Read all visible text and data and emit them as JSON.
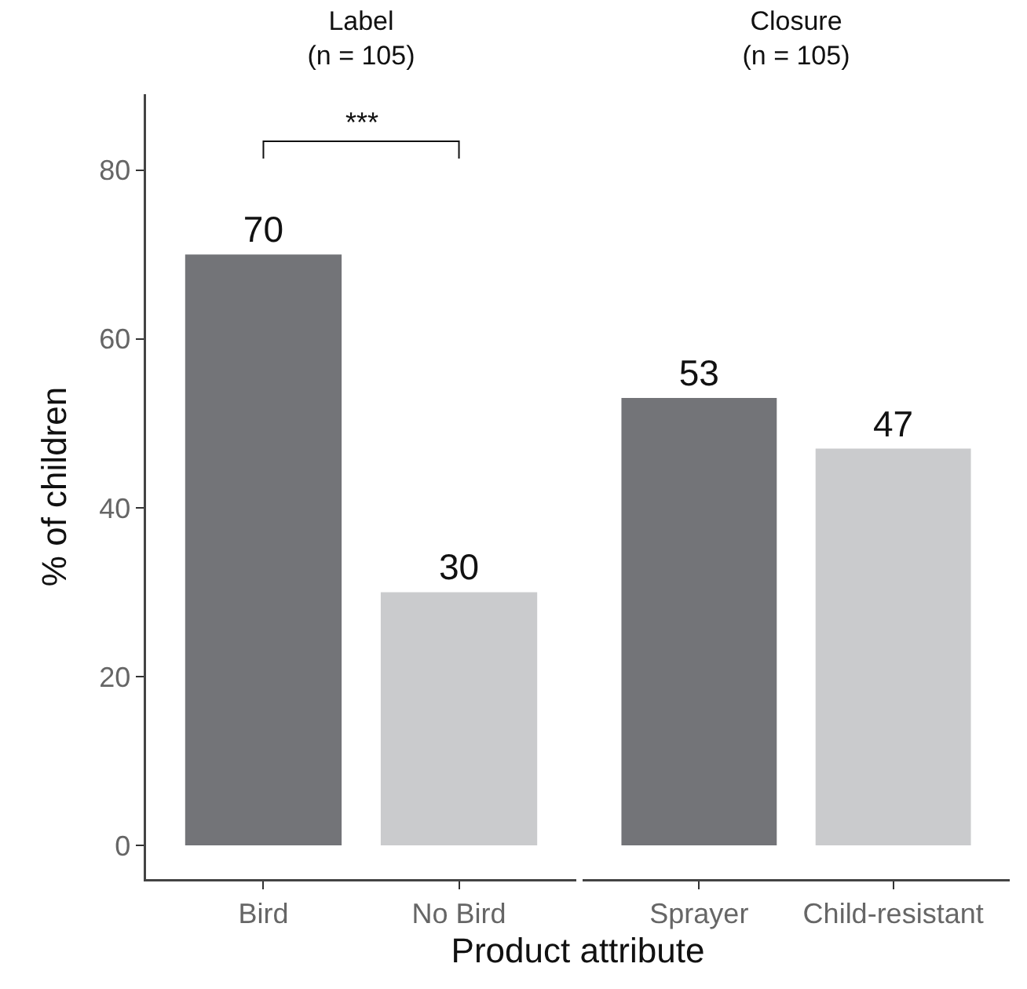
{
  "chart_data": [
    {
      "type": "bar",
      "title": "Label\n(n = 105)",
      "xlabel": "Product attribute",
      "ylabel": "% of children",
      "categories": [
        "Bird",
        "No Bird"
      ],
      "values": [
        70,
        30
      ],
      "colors": [
        "#737478",
        "#cacbcd"
      ],
      "ylim": [
        -4,
        89
      ],
      "yticks": [
        0,
        20,
        40,
        60,
        80
      ],
      "data_labels": true,
      "grid": false,
      "legend": false,
      "annotations": [
        "***"
      ]
    },
    {
      "type": "bar",
      "title": "Closure\n(n = 105)",
      "categories": [
        "Sprayer",
        "Child-resistant"
      ],
      "values": [
        53,
        47
      ],
      "colors": [
        "#737478",
        "#cacbcd"
      ],
      "data_labels": true,
      "grid": false,
      "legend": false,
      "tick_labels": "x"
    }
  ]
}
